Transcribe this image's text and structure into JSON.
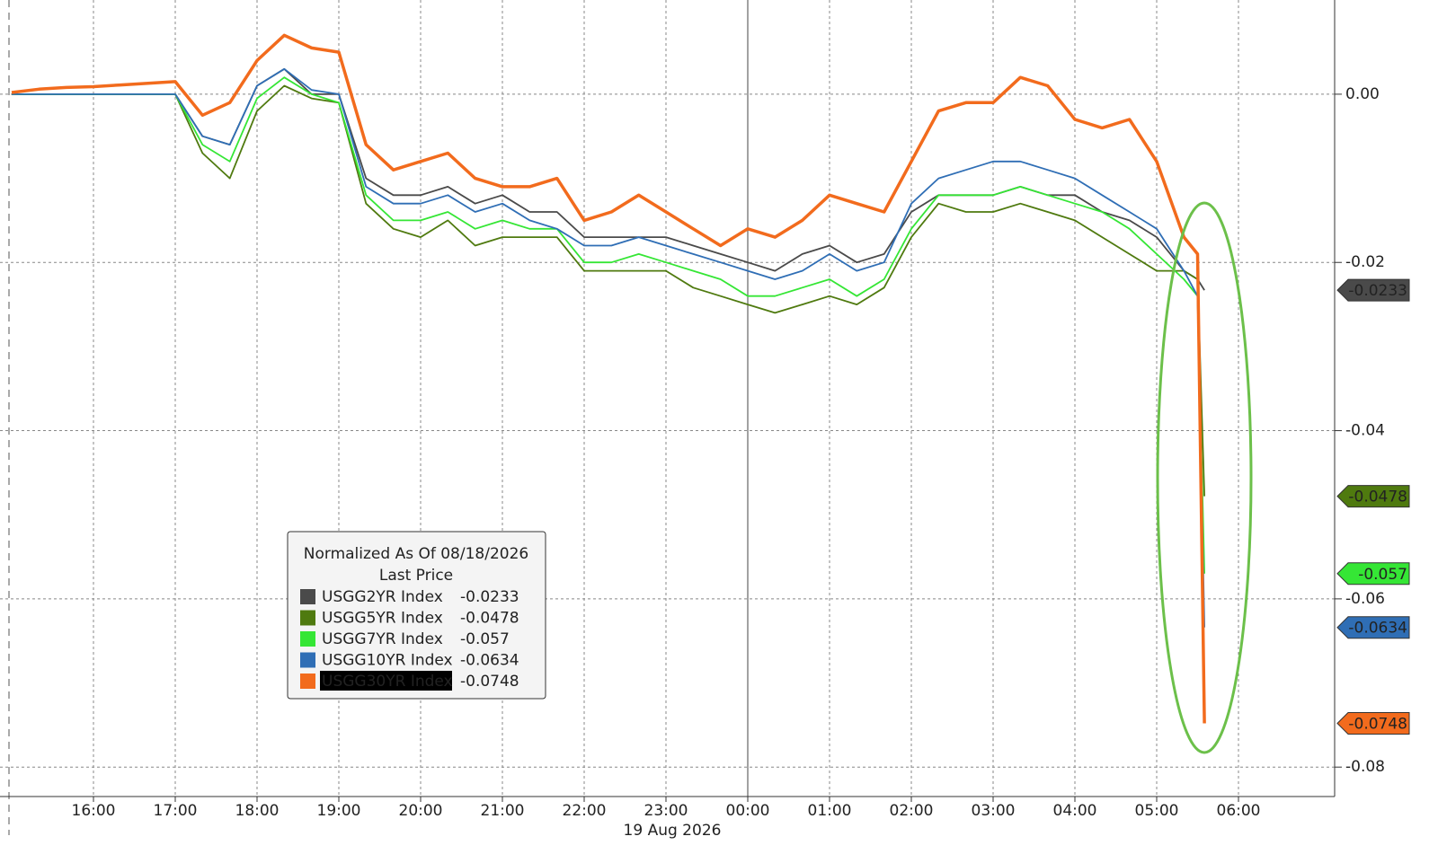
{
  "chart_data": {
    "type": "line",
    "xlabel": "19 Aug 2026",
    "legend_title": "Normalized As Of 08/18/2026",
    "legend_subtitle": "Last Price",
    "legend": "bottom-left",
    "grid": true,
    "x": [
      "15:00",
      "15:20",
      "15:40",
      "16:00",
      "16:20",
      "16:40",
      "17:00",
      "17:20",
      "17:40",
      "18:00",
      "18:20",
      "18:40",
      "19:00",
      "19:20",
      "19:40",
      "20:00",
      "20:20",
      "20:40",
      "21:00",
      "21:20",
      "21:40",
      "22:00",
      "22:20",
      "22:40",
      "23:00",
      "23:20",
      "23:40",
      "00:00",
      "00:20",
      "00:40",
      "01:00",
      "01:20",
      "01:40",
      "02:00",
      "02:20",
      "02:40",
      "03:00",
      "03:20",
      "03:40",
      "04:00",
      "04:20",
      "04:40",
      "05:00",
      "05:20",
      "05:30",
      "05:35"
    ],
    "xticks": [
      "16:00",
      "17:00",
      "18:00",
      "19:00",
      "20:00",
      "21:00",
      "22:00",
      "23:00",
      "00:00",
      "01:00",
      "02:00",
      "03:00",
      "04:00",
      "05:00",
      "06:00"
    ],
    "ylim": [
      -0.0835,
      0.0112
    ],
    "yticks": [
      {
        "value": 0,
        "label": "0.00"
      },
      -0.02,
      -0.04,
      -0.06,
      -0.08
    ],
    "series": [
      {
        "name": "USGG2YR Index",
        "color": "#4a4a4a",
        "values": [
          0,
          0,
          0,
          0,
          0,
          0,
          0,
          -0.005,
          -0.006,
          0.001,
          0.003,
          0,
          0,
          -0.01,
          -0.012,
          -0.012,
          -0.011,
          -0.013,
          -0.012,
          -0.014,
          -0.014,
          -0.017,
          -0.017,
          -0.017,
          -0.017,
          -0.018,
          -0.019,
          -0.02,
          -0.021,
          -0.019,
          -0.018,
          -0.02,
          -0.019,
          -0.014,
          -0.012,
          -0.012,
          -0.012,
          -0.011,
          -0.012,
          -0.012,
          -0.014,
          -0.015,
          -0.017,
          -0.021,
          -0.022,
          -0.0233
        ]
      },
      {
        "name": "USGG5YR Index",
        "color": "#4f7a0f",
        "values": [
          0,
          0,
          0,
          0,
          0,
          0,
          0,
          -0.007,
          -0.01,
          -0.002,
          0.001,
          -0.0005,
          -0.001,
          -0.013,
          -0.016,
          -0.017,
          -0.015,
          -0.018,
          -0.017,
          -0.017,
          -0.017,
          -0.021,
          -0.021,
          -0.021,
          -0.021,
          -0.023,
          -0.024,
          -0.025,
          -0.026,
          -0.025,
          -0.024,
          -0.025,
          -0.023,
          -0.017,
          -0.013,
          -0.014,
          -0.014,
          -0.013,
          -0.014,
          -0.015,
          -0.017,
          -0.019,
          -0.021,
          -0.021,
          -0.022,
          -0.0478
        ]
      },
      {
        "name": "USGG7YR Index",
        "color": "#35e635",
        "values": [
          0,
          0,
          0,
          0,
          0,
          0,
          0,
          -0.006,
          -0.008,
          -0.0005,
          0.002,
          0,
          -0.001,
          -0.012,
          -0.015,
          -0.015,
          -0.014,
          -0.016,
          -0.015,
          -0.016,
          -0.016,
          -0.02,
          -0.02,
          -0.019,
          -0.02,
          -0.021,
          -0.022,
          -0.024,
          -0.024,
          -0.023,
          -0.022,
          -0.024,
          -0.022,
          -0.016,
          -0.012,
          -0.012,
          -0.012,
          -0.011,
          -0.012,
          -0.013,
          -0.014,
          -0.016,
          -0.019,
          -0.022,
          -0.024,
          -0.057
        ]
      },
      {
        "name": "USGG10YR Index",
        "color": "#2f6eb5",
        "values": [
          0,
          0,
          0,
          0,
          0,
          0,
          0,
          -0.005,
          -0.006,
          0.001,
          0.003,
          0.0005,
          0,
          -0.011,
          -0.013,
          -0.013,
          -0.012,
          -0.014,
          -0.013,
          -0.015,
          -0.016,
          -0.018,
          -0.018,
          -0.017,
          -0.018,
          -0.019,
          -0.02,
          -0.021,
          -0.022,
          -0.021,
          -0.019,
          -0.021,
          -0.02,
          -0.013,
          -0.01,
          -0.009,
          -0.008,
          -0.008,
          -0.009,
          -0.01,
          -0.012,
          -0.014,
          -0.016,
          -0.021,
          -0.024,
          -0.0634
        ]
      },
      {
        "name": "USGG30YR Index",
        "color": "#f26b1d",
        "values": [
          0.0002,
          0.0006,
          0.0008,
          0.0009,
          0.0011,
          0.0013,
          0.0015,
          -0.0025,
          -0.001,
          0.004,
          0.007,
          0.0055,
          0.005,
          -0.006,
          -0.009,
          -0.008,
          -0.007,
          -0.01,
          -0.011,
          -0.011,
          -0.01,
          -0.015,
          -0.014,
          -0.012,
          -0.014,
          -0.016,
          -0.018,
          -0.016,
          -0.017,
          -0.015,
          -0.012,
          -0.013,
          -0.014,
          -0.008,
          -0.002,
          -0.001,
          -0.001,
          0.002,
          0.001,
          -0.003,
          -0.004,
          -0.003,
          -0.008,
          -0.017,
          -0.019,
          -0.0748
        ]
      }
    ]
  }
}
